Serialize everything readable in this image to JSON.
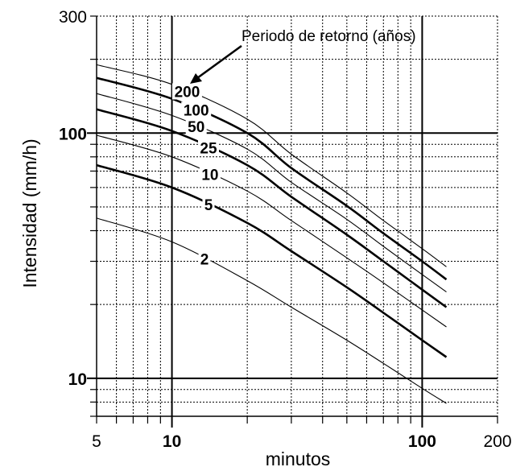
{
  "chart_data": {
    "type": "line",
    "title": "",
    "xlabel": "minutos",
    "ylabel": "Intensidad (mm/h)",
    "x_scale": "log",
    "y_scale": "log",
    "xlim": [
      5,
      200
    ],
    "ylim": [
      7,
      300
    ],
    "x_ticks": [
      {
        "value": 5,
        "label": "5",
        "bold": false
      },
      {
        "value": 10,
        "label": "10",
        "bold": true
      },
      {
        "value": 100,
        "label": "100",
        "bold": true
      },
      {
        "value": 200,
        "label": "200",
        "bold": false
      }
    ],
    "y_ticks": [
      {
        "value": 10,
        "label": "10",
        "bold": true
      },
      {
        "value": 100,
        "label": "100",
        "bold": true
      },
      {
        "value": 300,
        "label": "300",
        "bold": false
      }
    ],
    "grid": true,
    "annotation": {
      "text": "Periodo de retorno (años)",
      "points_to_series": "200"
    },
    "series": [
      {
        "name": "2",
        "bold": false,
        "label_at": 13.5,
        "x": [
          5,
          10,
          20,
          30,
          50,
          70,
          100,
          125
        ],
        "y": [
          45,
          36,
          25,
          19.5,
          14.3,
          11.5,
          9.1,
          7.9
        ]
      },
      {
        "name": "5",
        "bold": true,
        "label_at": 14,
        "x": [
          5,
          10,
          20,
          30,
          50,
          70,
          100,
          125
        ],
        "y": [
          74,
          60,
          43,
          33,
          23.5,
          18.5,
          14.3,
          12.2
        ]
      },
      {
        "name": "10",
        "bold": false,
        "label_at": 14.2,
        "x": [
          5,
          10,
          20,
          30,
          50,
          70,
          100,
          125
        ],
        "y": [
          98,
          80,
          58,
          44,
          31,
          24.5,
          19,
          16.2
        ]
      },
      {
        "name": "25",
        "bold": true,
        "label_at": 14,
        "x": [
          5,
          10,
          20,
          30,
          50,
          70,
          100,
          125
        ],
        "y": [
          125,
          102,
          74,
          55,
          38.5,
          30,
          23,
          19.5
        ]
      },
      {
        "name": "50",
        "bold": false,
        "label_at": 12.5,
        "x": [
          5,
          10,
          20,
          30,
          50,
          70,
          100,
          125
        ],
        "y": [
          145,
          118,
          86,
          63,
          44.5,
          34.5,
          26.5,
          22.5
        ]
      },
      {
        "name": "100",
        "bold": true,
        "label_at": 12.5,
        "x": [
          5,
          10,
          20,
          30,
          50,
          70,
          100,
          125
        ],
        "y": [
          168,
          138,
          100,
          72,
          50.5,
          39,
          30,
          25.3
        ]
      },
      {
        "name": "200",
        "bold": false,
        "label_at": 11.5,
        "x": [
          5,
          10,
          20,
          30,
          50,
          70,
          100,
          125
        ],
        "y": [
          190,
          158,
          114,
          82,
          57,
          44,
          33.8,
          28.5
        ]
      }
    ]
  }
}
